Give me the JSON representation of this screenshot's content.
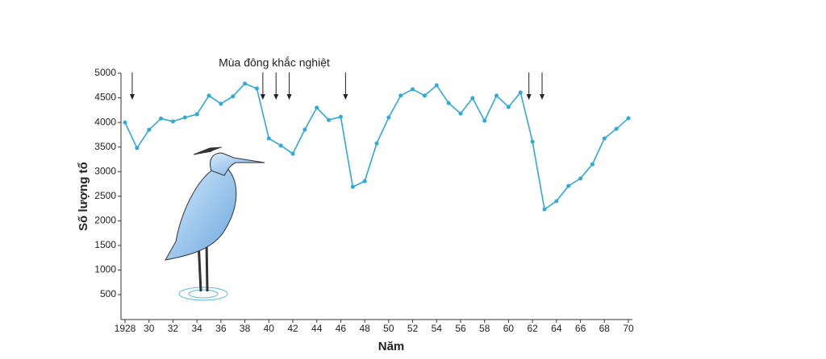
{
  "chart_data": {
    "type": "line",
    "annotation": {
      "text": "Mùa đông khắc nghiệt",
      "years": [
        1928.6,
        1939.5,
        1940.6,
        1941.7,
        1946.4,
        1961.7,
        1962.8
      ]
    },
    "xlabel": "Năm",
    "ylabel": "Số lượng tổ",
    "x": [
      1928,
      1929,
      1930,
      1931,
      1932,
      1933,
      1934,
      1935,
      1936,
      1937,
      1938,
      1939,
      1940,
      1941,
      1942,
      1943,
      1944,
      1945,
      1946,
      1947,
      1948,
      1949,
      1950,
      1951,
      1952,
      1953,
      1954,
      1955,
      1956,
      1957,
      1958,
      1959,
      1960,
      1961,
      1962,
      1963,
      1964,
      1965,
      1966,
      1967,
      1968,
      1969,
      1970
    ],
    "series": [
      {
        "color": "#2fa9d9",
        "values": [
          4000,
          3480,
          3850,
          4080,
          4020,
          4100,
          4165,
          4545,
          4380,
          4530,
          4790,
          4690,
          3675,
          3530,
          3365,
          3855,
          4300,
          4050,
          4115,
          2690,
          2805,
          3575,
          4100,
          4545,
          4675,
          4545,
          4755,
          4395,
          4180,
          4495,
          4035,
          4545,
          4315,
          4610,
          3610,
          2235,
          2400,
          2710,
          2860,
          3150,
          3675,
          3870,
          4085
        ]
      }
    ],
    "xlim": [
      1928,
      1970
    ],
    "xticks": [
      1928,
      {
        "value": 1930,
        "label": "30"
      },
      {
        "value": 1932,
        "label": "32"
      },
      {
        "value": 1934,
        "label": "34"
      },
      {
        "value": 1936,
        "label": "36"
      },
      {
        "value": 1938,
        "label": "38"
      },
      {
        "value": 1940,
        "label": "40"
      },
      {
        "value": 1942,
        "label": "42"
      },
      {
        "value": 1944,
        "label": "44"
      },
      {
        "value": 1946,
        "label": "46"
      },
      {
        "value": 1948,
        "label": "48"
      },
      {
        "value": 1950,
        "label": "50"
      },
      {
        "value": 1952,
        "label": "52"
      },
      {
        "value": 1954,
        "label": "54"
      },
      {
        "value": 1956,
        "label": "56"
      },
      {
        "value": 1958,
        "label": "58"
      },
      {
        "value": 1960,
        "label": "60"
      },
      {
        "value": 1962,
        "label": "62"
      },
      {
        "value": 1964,
        "label": "64"
      },
      {
        "value": 1966,
        "label": "66"
      },
      {
        "value": 1968,
        "label": "68"
      },
      {
        "value": 1970,
        "label": "70"
      }
    ],
    "ylim": [
      0,
      5000
    ],
    "yticks": [
      500,
      1000,
      1500,
      2000,
      2500,
      3000,
      3500,
      4000,
      4500,
      5000
    ]
  }
}
